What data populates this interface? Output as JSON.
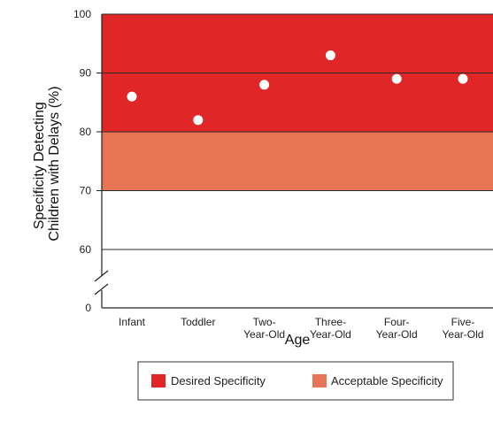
{
  "chart_data": {
    "type": "scatter",
    "title": "",
    "xlabel": "Age",
    "ylabel": [
      "Specificity Detecting",
      "Children with Delays (%)"
    ],
    "categories": [
      [
        "Infant"
      ],
      [
        "Toddler"
      ],
      [
        "Two-",
        "Year-Old"
      ],
      [
        "Three-",
        "Year-Old"
      ],
      [
        "Four-",
        "Year-Old"
      ],
      [
        "Five-",
        "Year-Old"
      ]
    ],
    "values": [
      86,
      82,
      88,
      93,
      89,
      89
    ],
    "yticks": [
      0,
      60,
      70,
      80,
      90,
      100
    ],
    "ylim": [
      50,
      100
    ],
    "axis_break": true,
    "bands": [
      {
        "name": "Desired Specificity",
        "from": 80,
        "to": 100,
        "color": "#e02626"
      },
      {
        "name": "Acceptable Specificity",
        "from": 70,
        "to": 80,
        "color": "#e87456"
      }
    ],
    "marker_color": "#ffffff",
    "legend_position": "bottom"
  }
}
